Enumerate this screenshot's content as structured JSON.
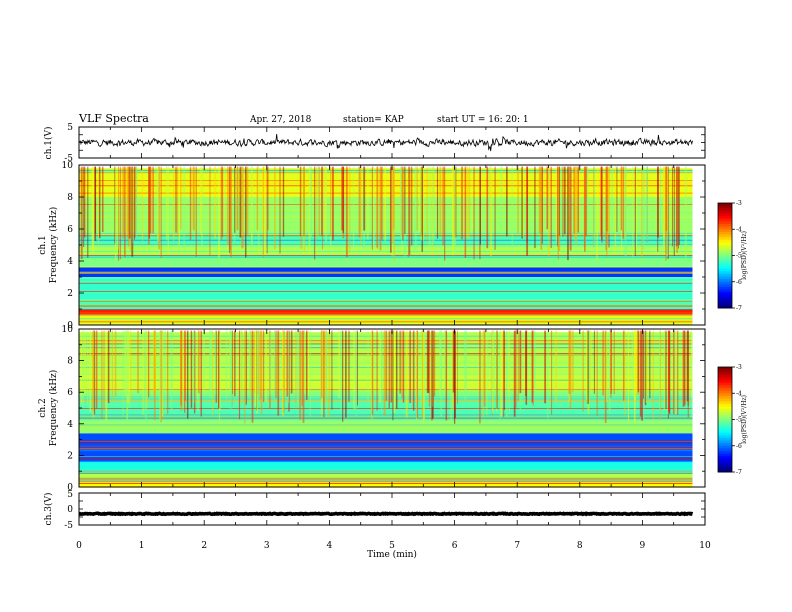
{
  "header": {
    "title": "VLF Spectra",
    "date": "Apr. 27, 2018",
    "station": "station= KAP",
    "start_ut": "start  UT =   16: 20: 1"
  },
  "chart_data": [
    {
      "type": "line",
      "panel": "ch.1 waveform",
      "ylabel": "ch.1(V)",
      "ylim": [
        -5,
        5
      ],
      "yticks": [
        "5",
        "-5"
      ],
      "xlim": [
        0,
        10
      ],
      "x_extent": [
        0,
        9.8
      ],
      "description_free": true,
      "signal_mean": 0,
      "signal_amplitude": 1.5,
      "color": "#000000"
    },
    {
      "type": "heatmap",
      "panel": "ch.1 spectrogram",
      "ylabel_line1": "ch.1",
      "ylabel_line2": "Frequency  (kHz)",
      "ylim": [
        0,
        10
      ],
      "yticks": [
        "0",
        "2",
        "4",
        "6",
        "8",
        "10"
      ],
      "xlim": [
        0,
        10
      ],
      "x_extent": [
        0,
        9.8
      ],
      "colorscale": "jet",
      "log_psd_range": [
        -7,
        -3
      ],
      "bands": [
        {
          "f": [
            0.0,
            0.6
          ],
          "level": -4.6
        },
        {
          "f": [
            0.6,
            1.0
          ],
          "level": -3.6
        },
        {
          "f": [
            1.0,
            1.6
          ],
          "level": -5.2
        },
        {
          "f": [
            1.6,
            3.0
          ],
          "level": -5.3
        },
        {
          "f": [
            3.0,
            3.6
          ],
          "level": -6.3
        },
        {
          "f": [
            3.6,
            4.4
          ],
          "level": -5.0
        },
        {
          "f": [
            4.4,
            5.0
          ],
          "level": -4.8
        },
        {
          "f": [
            5.0,
            5.6
          ],
          "level": -5.2
        },
        {
          "f": [
            5.6,
            8.0
          ],
          "level": -4.9
        },
        {
          "f": [
            8.0,
            9.8
          ],
          "level": -4.6
        }
      ],
      "colorbar": {
        "label": "log(PSD)(V²/Hz)",
        "ticks": [
          "-3",
          "-4",
          "-5",
          "-6",
          "-7"
        ]
      }
    },
    {
      "type": "heatmap",
      "panel": "ch.2 spectrogram",
      "ylabel_line1": "ch.2",
      "ylabel_line2": "Frequency  (kHz)",
      "ylim": [
        0,
        10
      ],
      "yticks": [
        "0",
        "2",
        "4",
        "6",
        "8",
        "10"
      ],
      "xlim": [
        0,
        10
      ],
      "x_extent": [
        0,
        9.8
      ],
      "colorscale": "jet",
      "log_psd_range": [
        -7,
        -3
      ],
      "bands": [
        {
          "f": [
            0.0,
            0.6
          ],
          "level": -4.5
        },
        {
          "f": [
            0.6,
            1.0
          ],
          "level": -4.8
        },
        {
          "f": [
            1.0,
            1.6
          ],
          "level": -5.4
        },
        {
          "f": [
            1.6,
            3.4
          ],
          "level": -6.2
        },
        {
          "f": [
            3.4,
            4.2
          ],
          "level": -4.9
        },
        {
          "f": [
            4.2,
            5.4
          ],
          "level": -5.2
        },
        {
          "f": [
            5.4,
            6.2
          ],
          "level": -5.0
        },
        {
          "f": [
            6.2,
            7.2
          ],
          "level": -4.7
        },
        {
          "f": [
            7.2,
            9.8
          ],
          "level": -4.8
        }
      ],
      "colorbar": {
        "label": "log(PSD)(V²/Hz)",
        "ticks": [
          "-3",
          "-4",
          "-5",
          "-6",
          "-7"
        ]
      }
    },
    {
      "type": "line",
      "panel": "ch.3 waveform",
      "ylabel": "ch.3(V)",
      "ylim": [
        -5,
        5
      ],
      "yticks": [
        "5",
        "0",
        "-5"
      ],
      "xlim": [
        0,
        10
      ],
      "x_extent": [
        0,
        9.8
      ],
      "signal_mean": -1.5,
      "signal_amplitude": 0.2,
      "color": "#000000"
    }
  ],
  "xaxis": {
    "label": "Time  (min)",
    "ticks": [
      "0",
      "1",
      "2",
      "3",
      "4",
      "5",
      "6",
      "7",
      "8",
      "9",
      "10"
    ]
  }
}
